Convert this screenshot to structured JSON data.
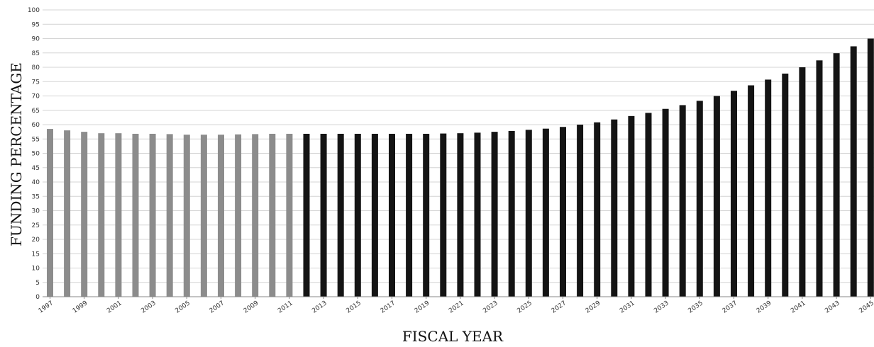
{
  "chart_data": {
    "type": "bar",
    "title": "",
    "xlabel": "FISCAL YEAR",
    "ylabel": "FUNDING PERCENTAGE",
    "ylim": [
      0,
      100
    ],
    "ytick_step": 5,
    "grid": true,
    "categories": [
      "1997",
      "1998",
      "1999",
      "2000",
      "2001",
      "2002",
      "2003",
      "2004",
      "2005",
      "2006",
      "2007",
      "2008",
      "2009",
      "2010",
      "2011",
      "2012",
      "2013",
      "2014",
      "2015",
      "2016",
      "2017",
      "2018",
      "2019",
      "2020",
      "2021",
      "2022",
      "2023",
      "2024",
      "2025",
      "2026",
      "2027",
      "2028",
      "2029",
      "2030",
      "2031",
      "2032",
      "2033",
      "2034",
      "2035",
      "2036",
      "2037",
      "2038",
      "2039",
      "2040",
      "2041",
      "2042",
      "2043",
      "2044",
      "2045"
    ],
    "tick_labels_shown": [
      "1997",
      "1999",
      "2001",
      "2003",
      "2005",
      "2007",
      "2009",
      "2011",
      "2013",
      "2015",
      "2017",
      "2019",
      "2021",
      "2023",
      "2025",
      "2027",
      "2029",
      "2031",
      "2033",
      "2035",
      "2037",
      "2039",
      "2041",
      "2043",
      "2045"
    ],
    "values": [
      58.5,
      58,
      57.5,
      57,
      57,
      56.8,
      56.8,
      56.7,
      56.5,
      56.5,
      56.5,
      56.6,
      56.7,
      56.8,
      56.8,
      56.8,
      56.8,
      56.8,
      56.8,
      56.8,
      56.8,
      56.8,
      56.8,
      56.9,
      57,
      57.2,
      57.5,
      57.8,
      58.2,
      58.6,
      59.2,
      60,
      60.8,
      61.8,
      63,
      64.1,
      65.5,
      66.8,
      68.3,
      70,
      71.8,
      73.7,
      75.7,
      77.8,
      80,
      82.4,
      84.9,
      87.3,
      90
    ],
    "series_colors": {
      "historical": "#8c8c8c",
      "projected": "#141414"
    },
    "historical_through": "2011"
  }
}
